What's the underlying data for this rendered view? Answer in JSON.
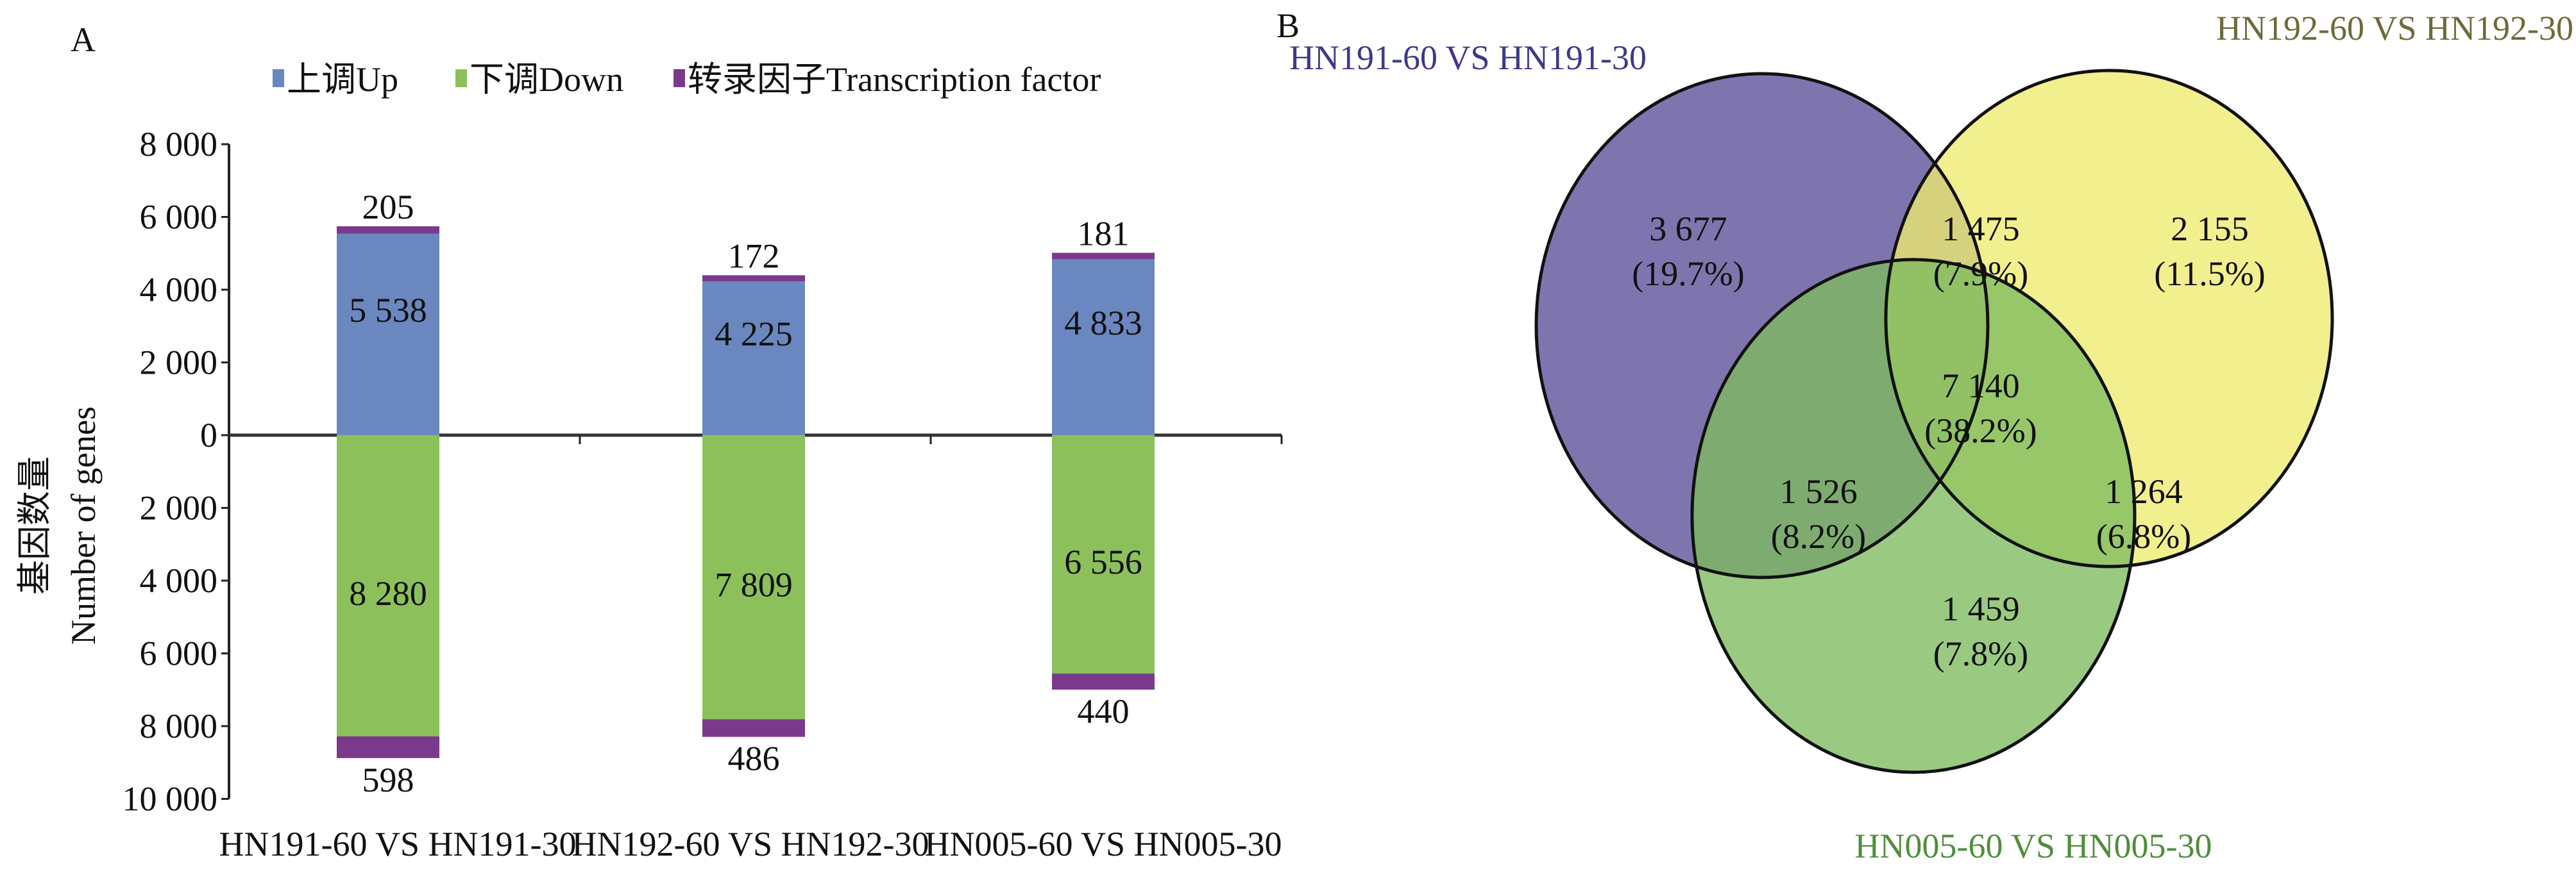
{
  "chart_data": [
    {
      "type": "bar",
      "panel_label": "A",
      "title": "",
      "ylabel_cn": "基因数量",
      "ylabel": "Number of genes",
      "xlabel": "",
      "ylim": [
        -10000,
        8000
      ],
      "yticks": [
        8000,
        6000,
        4000,
        2000,
        0,
        -2000,
        -4000,
        -6000,
        -8000,
        -10000
      ],
      "ytick_labels": [
        "8 000",
        "6 000",
        "4 000",
        "2 000",
        "0",
        "2 000",
        "4 000",
        "6 000",
        "8 000",
        "10 000"
      ],
      "categories": [
        "HN191-60 VS HN191-30",
        "HN192-60 VS HN192-30",
        "HN005-60 VS HN005-30"
      ],
      "legend_placement": "top",
      "series": [
        {
          "name": "上调Up",
          "color": "#6a88bf",
          "values": [
            5538,
            4225,
            4833
          ],
          "labels": [
            "5 538",
            "4 225",
            "4 833"
          ]
        },
        {
          "name": "下调Down",
          "color": "#8cc05a",
          "values": [
            -8280,
            -7809,
            -6556
          ],
          "labels": [
            "8 280",
            "7 809",
            "6 556"
          ]
        },
        {
          "name": "转录因子Transcription factor",
          "color": "#7a3a8c",
          "values_up": [
            205,
            172,
            181
          ],
          "labels_up": [
            "205",
            "172",
            "181"
          ],
          "values_down": [
            598,
            486,
            440
          ],
          "labels_down": [
            "598",
            "486",
            "440"
          ]
        }
      ]
    },
    {
      "type": "venn",
      "panel_label": "B",
      "sets": [
        {
          "name": "HN191-60 VS HN191-30",
          "color": "#5b4e97",
          "label_color": "#3d3a8a"
        },
        {
          "name": "HN192-60 VS HN192-30",
          "color": "#eeea70",
          "label_color": "#6e6a3a"
        },
        {
          "name": "HN005-60 VS HN005-30",
          "color": "#7dbb5f",
          "label_color": "#4f8e3c"
        }
      ],
      "regions": [
        {
          "sets": "A",
          "count": "3 677",
          "pct": "(19.7%)"
        },
        {
          "sets": "A∩B",
          "count": "1 475",
          "pct": "(7.9%)"
        },
        {
          "sets": "B",
          "count": "2 155",
          "pct": "(11.5%)"
        },
        {
          "sets": "A∩B∩C",
          "count": "7 140",
          "pct": "(38.2%)"
        },
        {
          "sets": "A∩C",
          "count": "1 526",
          "pct": "(8.2%)"
        },
        {
          "sets": "B∩C",
          "count": "1 264",
          "pct": "(6.8%)"
        },
        {
          "sets": "C",
          "count": "1 459",
          "pct": "(7.8%)"
        }
      ]
    }
  ]
}
